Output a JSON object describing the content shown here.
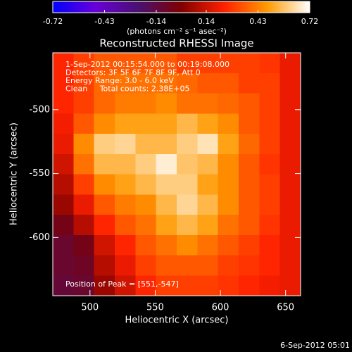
{
  "chart_data": {
    "type": "heatmap",
    "title": "Reconstructed RHESSI Image",
    "colorbar_label": "(photons cm⁻² s⁻¹ asec⁻²)",
    "zlim": [
      -0.72,
      0.72
    ],
    "zticks": [
      -0.72,
      -0.43,
      -0.14,
      0.14,
      0.43,
      0.72
    ],
    "colormap": [
      "#0000ff",
      "#6a00d8",
      "#4a1070",
      "#800000",
      "#ff2000",
      "#ff9a00",
      "#ffffff"
    ],
    "annotations": [
      "1-Sep-2012 00:15:54.000 to 00:19:08.000",
      "Detectors: 3F 5F 6F 7F 8F 9F, Att 0",
      "Energy Range: 3.0 - 6.0 keV",
      "Clean     Total counts: 2.38E+05"
    ],
    "peak_label": "Position of Peak = [551,-547]",
    "date": "6-Sep-2012 05:01",
    "xlabel": "Heliocentric X (arcsec)",
    "ylabel": "Heliocentric Y (arcsec)",
    "xlim": [
      471.5,
      661.5
    ],
    "ylim": [
      -645.5,
      -455.5
    ],
    "xticks": [
      500,
      550,
      600,
      650
    ],
    "yticks": [
      -500,
      -550,
      -600
    ],
    "values": [
      [
        0.25,
        0.3,
        0.35,
        0.35,
        0.35,
        0.35,
        0.3,
        0.3,
        0.3,
        0.3,
        0.28,
        0.2
      ],
      [
        0.25,
        0.3,
        0.38,
        0.4,
        0.4,
        0.4,
        0.38,
        0.35,
        0.35,
        0.3,
        0.3,
        0.2
      ],
      [
        0.25,
        0.3,
        0.38,
        0.42,
        0.42,
        0.45,
        0.4,
        0.4,
        0.38,
        0.35,
        0.3,
        0.2
      ],
      [
        0.22,
        0.35,
        0.45,
        0.5,
        0.5,
        0.5,
        0.55,
        0.5,
        0.45,
        0.35,
        0.3,
        0.2
      ],
      [
        0.2,
        0.45,
        0.6,
        0.62,
        0.55,
        0.55,
        0.6,
        0.65,
        0.5,
        0.38,
        0.3,
        0.2
      ],
      [
        0.15,
        0.4,
        0.55,
        0.55,
        0.6,
        0.68,
        0.58,
        0.55,
        0.45,
        0.35,
        0.28,
        0.2
      ],
      [
        0.1,
        0.3,
        0.45,
        0.5,
        0.55,
        0.6,
        0.6,
        0.5,
        0.45,
        0.35,
        0.3,
        0.2
      ],
      [
        0.05,
        0.2,
        0.35,
        0.42,
        0.45,
        0.55,
        0.62,
        0.55,
        0.45,
        0.35,
        0.3,
        0.2
      ],
      [
        -0.05,
        0.1,
        0.25,
        0.35,
        0.4,
        0.5,
        0.55,
        0.5,
        0.4,
        0.35,
        0.28,
        0.2
      ],
      [
        -0.1,
        -0.05,
        0.15,
        0.25,
        0.35,
        0.4,
        0.45,
        0.4,
        0.35,
        0.3,
        0.25,
        0.2
      ],
      [
        -0.1,
        -0.08,
        0.1,
        0.2,
        0.3,
        0.35,
        0.35,
        0.35,
        0.3,
        0.28,
        0.25,
        0.2
      ],
      [
        -0.12,
        -0.1,
        0.05,
        0.15,
        0.25,
        0.3,
        0.3,
        0.3,
        0.28,
        0.25,
        0.22,
        0.2
      ]
    ]
  }
}
